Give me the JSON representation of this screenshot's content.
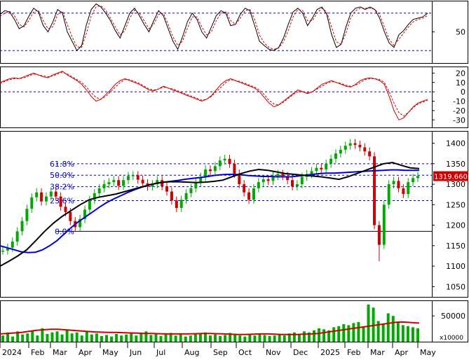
{
  "chart_data": {
    "type": "line",
    "time_axis": {
      "labels": [
        "2024",
        "Feb",
        "Mar",
        "Apr",
        "May",
        "Jun",
        "Jul",
        "Aug",
        "Sep",
        "Oct",
        "Nov",
        "Dec",
        "2025",
        "Feb",
        "Mar",
        "Apr",
        "May"
      ]
    },
    "panels": [
      {
        "name": "stochastic",
        "y_ticks": [
          50
        ],
        "y_range": [
          0,
          100
        ],
        "reference_lines": [
          80,
          20
        ],
        "series": [
          {
            "style": "solid",
            "color": "#000000",
            "values": [
              78,
              84,
              82,
              70,
              55,
              60,
              75,
              88,
              82,
              60,
              50,
              66,
              86,
              80,
              50,
              35,
              20,
              28,
              62,
              86,
              95,
              90,
              80,
              68,
              52,
              40,
              60,
              80,
              88,
              76,
              62,
              50,
              68,
              84,
              76,
              55,
              35,
              22,
              42,
              66,
              80,
              70,
              50,
              40,
              58,
              76,
              84,
              80,
              60,
              62,
              78,
              88,
              84,
              60,
              35,
              28,
              22,
              20,
              25,
              40,
              62,
              82,
              88,
              80,
              60,
              72,
              86,
              90,
              78,
              46,
              25,
              30,
              58,
              80,
              88,
              90,
              86,
              90,
              86,
              72,
              50,
              32,
              25,
              45,
              52,
              62,
              70,
              72,
              74,
              80
            ]
          },
          {
            "style": "dashed",
            "color": "#cc0000",
            "values": [
              75,
              80,
              83,
              76,
              62,
              58,
              68,
              82,
              85,
              68,
              55,
              58,
              78,
              83,
              62,
              42,
              26,
              25,
              48,
              76,
              90,
              92,
              85,
              72,
              58,
              45,
              52,
              72,
              85,
              80,
              68,
              55,
              62,
              78,
              80,
              62,
              42,
              28,
              35,
              56,
              74,
              74,
              58,
              45,
              50,
              68,
              80,
              82,
              68,
              62,
              72,
              84,
              86,
              70,
              45,
              32,
              25,
              22,
              24,
              34,
              52,
              74,
              86,
              84,
              68,
              68,
              80,
              88,
              82,
              58,
              34,
              30,
              48,
              72,
              84,
              88,
              88,
              88,
              86,
              78,
              58,
              38,
              28,
              38,
              48,
              58,
              66,
              70,
              72,
              76
            ]
          }
        ]
      },
      {
        "name": "momentum",
        "y_ticks": [
          20,
          10,
          0,
          -10,
          -20,
          -30
        ],
        "y_range": [
          -38,
          27
        ],
        "reference_lines": [
          0
        ],
        "series": [
          {
            "style": "solid",
            "color": "#cc0000",
            "values": [
              10,
              12,
              14,
              15,
              14,
              16,
              18,
              20,
              18,
              16,
              15,
              18,
              20,
              22,
              18,
              15,
              12,
              8,
              2,
              -5,
              -10,
              -8,
              -3,
              2,
              8,
              12,
              14,
              12,
              10,
              8,
              5,
              2,
              1,
              3,
              6,
              4,
              2,
              0,
              -2,
              -4,
              -6,
              -8,
              -10,
              -8,
              -4,
              2,
              8,
              12,
              14,
              12,
              10,
              8,
              6,
              4,
              0,
              -6,
              -12,
              -16,
              -14,
              -10,
              -6,
              -2,
              2,
              0,
              -2,
              0,
              4,
              8,
              10,
              12,
              10,
              8,
              6,
              5,
              8,
              12,
              14,
              15,
              14,
              12,
              8,
              -5,
              -20,
              -30,
              -28,
              -22,
              -16,
              -12,
              -10,
              -8
            ]
          },
          {
            "style": "dashed",
            "color": "#cc0000",
            "values": [
              9,
              11,
              13,
              14,
              14,
              15,
              17,
              19,
              18,
              17,
              16,
              17,
              19,
              21,
              19,
              16,
              13,
              10,
              5,
              -1,
              -6,
              -8,
              -5,
              0,
              5,
              10,
              13,
              13,
              11,
              9,
              6,
              3,
              2,
              3,
              5,
              4,
              3,
              1,
              -1,
              -3,
              -5,
              -7,
              -9,
              -8,
              -5,
              0,
              5,
              10,
              13,
              12,
              11,
              9,
              7,
              5,
              2,
              -3,
              -9,
              -13,
              -14,
              -11,
              -7,
              -3,
              0,
              0,
              -1,
              0,
              3,
              6,
              9,
              11,
              10,
              9,
              7,
              6,
              7,
              10,
              13,
              14,
              14,
              13,
              10,
              0,
              -12,
              -22,
              -26,
              -22,
              -17,
              -13,
              -11,
              -9
            ]
          }
        ]
      },
      {
        "name": "price",
        "y_ticks": [
          1400,
          1350,
          1300,
          1250,
          1200,
          1150,
          1100,
          1050
        ],
        "y_range": [
          1025,
          1430
        ],
        "last_price_label": "1319.660",
        "fibonacci": [
          {
            "label": "61.8%",
            "value": 1350
          },
          {
            "label": "50.0%",
            "value": 1322
          },
          {
            "label": "38.2%",
            "value": 1294
          },
          {
            "label": "23.6%",
            "value": 1260
          },
          {
            "label": "0.0%",
            "value": 1185
          }
        ],
        "series": [
          {
            "style": "candles",
            "color": "#00aa00",
            "values": [
              1138,
              1145,
              1160,
              1185,
              1210,
              1240,
              1268,
              1280,
              1258,
              1270,
              1282,
              1270,
              1245,
              1232,
              1210,
              1195,
              1215,
              1238,
              1262,
              1278,
              1290,
              1300,
              1305,
              1310,
              1296,
              1310,
              1320,
              1322,
              1311,
              1302,
              1294,
              1300,
              1310,
              1295,
              1282,
              1260,
              1242,
              1262,
              1278,
              1290,
              1305,
              1318,
              1336,
              1332,
              1344,
              1358,
              1362,
              1350,
              1326,
              1300,
              1280,
              1262,
              1290,
              1305,
              1312,
              1308,
              1320,
              1325,
              1320,
              1310,
              1295,
              1300,
              1318,
              1325,
              1332,
              1340,
              1336,
              1350,
              1362,
              1375,
              1384,
              1394,
              1400,
              1396,
              1390,
              1380,
              1368,
              1200,
              1152,
              1250,
              1300,
              1308,
              1290,
              1276,
              1305,
              1315,
              1320
            ]
          },
          {
            "style": "solid",
            "color": "#0000cc",
            "values": [
              1150,
              1145,
              1140,
              1135,
              1133,
              1134,
              1140,
              1150,
              1162,
              1178,
              1194,
              1208,
              1220,
              1232,
              1244,
              1255,
              1264,
              1272,
              1280,
              1287,
              1293,
              1298,
              1302,
              1305,
              1307,
              1309,
              1312,
              1314,
              1316,
              1318,
              1321,
              1323,
              1324,
              1324,
              1323,
              1321,
              1320,
              1319,
              1319,
              1318,
              1318,
              1318,
              1320,
              1322,
              1324,
              1326,
              1327,
              1327,
              1328,
              1329,
              1330,
              1331,
              1332,
              1333,
              1334,
              1335,
              1335,
              1334,
              1334,
              1334
            ]
          },
          {
            "style": "solid",
            "color": "#000000",
            "values": [
              1100,
              1112,
              1125,
              1140,
              1162,
              1185,
              1205,
              1222,
              1236,
              1250,
              1262,
              1268,
              1272,
              1276,
              1282,
              1288,
              1294,
              1300,
              1304,
              1306,
              1306,
              1305,
              1304,
              1305,
              1307,
              1310,
              1318,
              1326,
              1332,
              1336,
              1334,
              1330,
              1326,
              1324,
              1322,
              1320,
              1318,
              1315,
              1312,
              1318,
              1326,
              1334,
              1342,
              1350,
              1353,
              1346,
              1340,
              1338
            ]
          }
        ]
      },
      {
        "name": "volume",
        "y_ticks": [
          50000
        ],
        "y_range": [
          0,
          80000
        ],
        "unit_label": "x10000",
        "series": [
          {
            "style": "bars",
            "color": "#00aa00",
            "values": [
              12000,
              18000,
              10000,
              20000,
              14000,
              16000,
              22000,
              12000,
              26000,
              15000,
              18000,
              20000,
              14000,
              22000,
              16000,
              18000,
              12000,
              20000,
              14000,
              16000,
              11000,
              13000,
              10000,
              15000,
              12000,
              14000,
              18000,
              12000,
              16000,
              20000,
              13000,
              15000,
              11000,
              14000,
              17000,
              12000,
              14000,
              10000,
              12000,
              16000,
              15000,
              18000,
              12000,
              14000,
              11000,
              13000,
              17000,
              15000,
              12000,
              10000,
              14000,
              12000,
              16000,
              13000,
              11000,
              12000,
              14000,
              12000,
              16000,
              18000,
              14000,
              20000,
              18000,
              22000,
              26000,
              24000,
              22000,
              28000,
              30000,
              34000,
              32000,
              36000,
              38000,
              30000,
              72000,
              66000,
              40000,
              35000,
              55000,
              50000,
              38000,
              32000,
              30000,
              28000,
              26000
            ]
          },
          {
            "style": "solid",
            "color": "#cc0000",
            "values": [
              15000,
              16000,
              17000,
              18000,
              20000,
              22000,
              23000,
              24000,
              24000,
              23000,
              22000,
              21000,
              20000,
              19000,
              18500,
              18000,
              18000,
              17500,
              17000,
              16500,
              16000,
              16000,
              15500,
              15000,
              15000,
              15000,
              15000,
              15500,
              16000,
              16000,
              15500,
              15000,
              14500,
              14000,
              14000,
              14500,
              15000,
              15000,
              14500,
              14000,
              14000,
              14000,
              14500,
              15000,
              16000,
              18000,
              20000,
              22000,
              24000,
              26000,
              28000,
              30000,
              32000,
              34000,
              36000,
              38000,
              38000,
              37000,
              36000
            ]
          }
        ]
      }
    ]
  }
}
